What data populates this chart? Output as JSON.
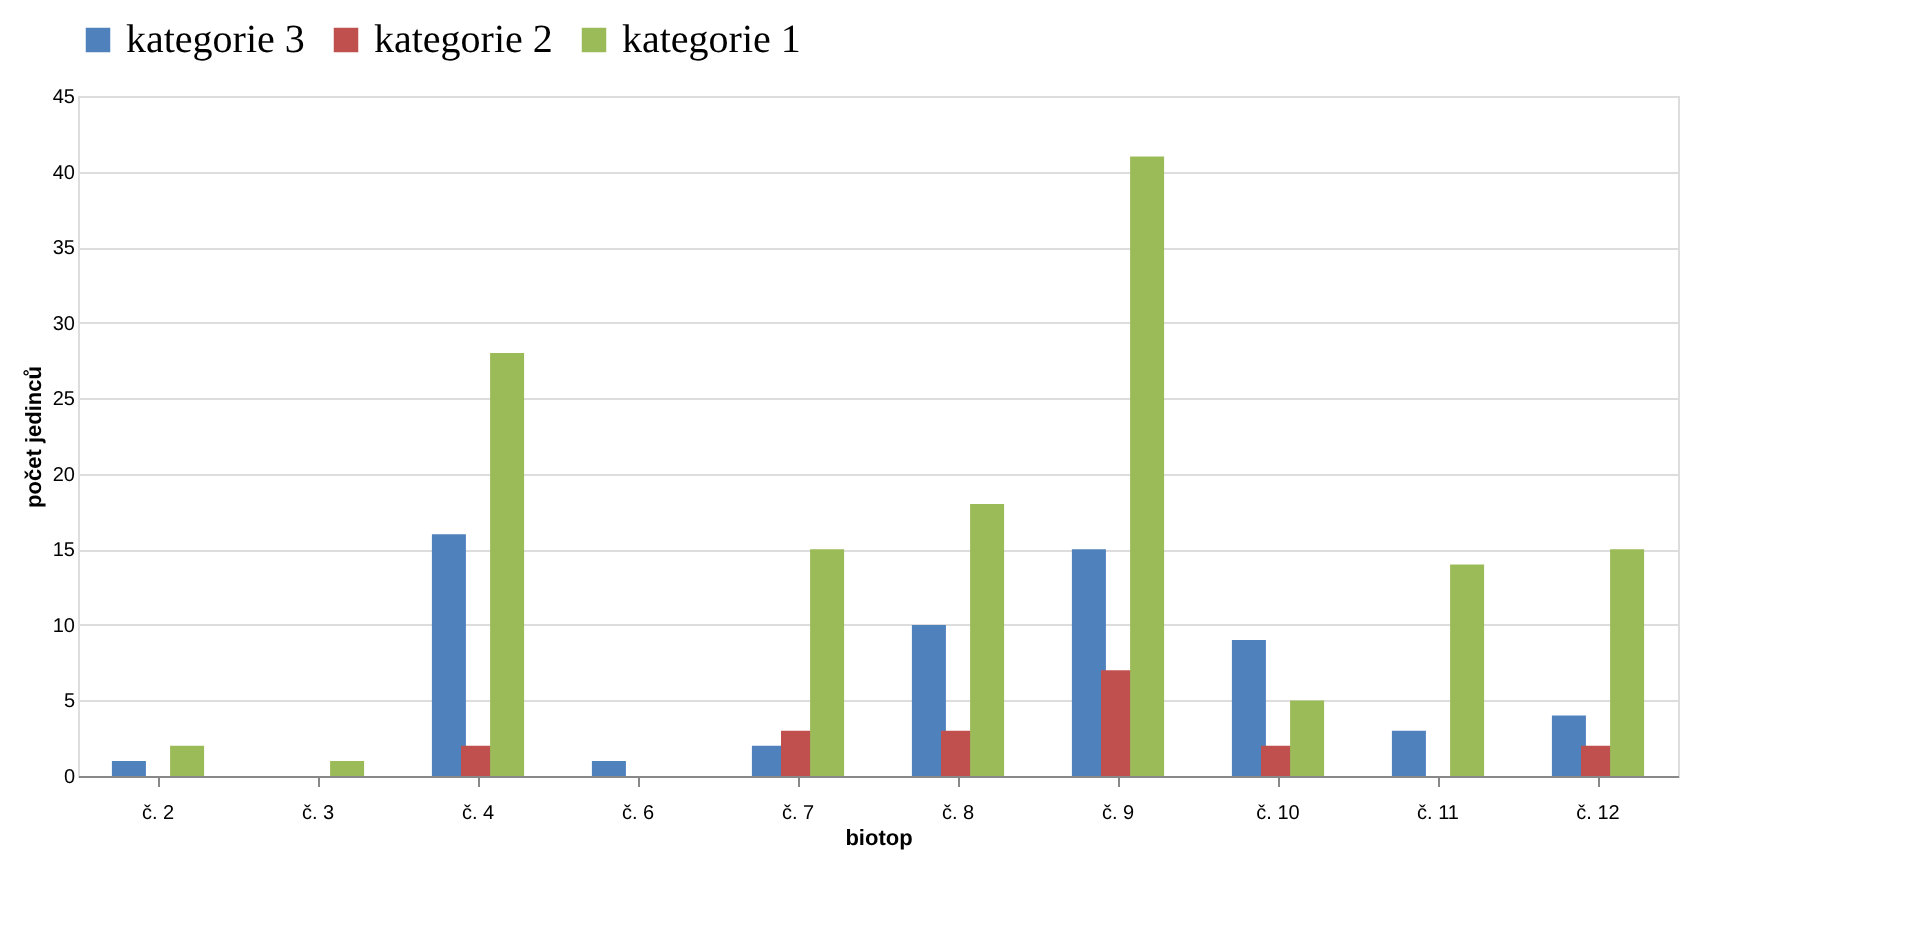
{
  "chart_data": {
    "type": "bar",
    "xlabel": "biotop",
    "ylabel": "počet jedinců",
    "categories": [
      "č. 2",
      "č. 3",
      "č. 4",
      "č. 6",
      "č. 7",
      "č. 8",
      "č. 9",
      "č. 10",
      "č. 11",
      "č. 12"
    ],
    "series": [
      {
        "name": "kategorie 3",
        "color": "#4f81bd",
        "values": [
          1,
          0,
          16,
          1,
          2,
          10,
          15,
          9,
          3,
          4
        ]
      },
      {
        "name": "kategorie 2",
        "color": "#c0504d",
        "values": [
          0,
          0,
          2,
          0,
          3,
          3,
          7,
          2,
          0,
          2
        ]
      },
      {
        "name": "kategorie 1",
        "color": "#9bbb59",
        "values": [
          2,
          1,
          28,
          0,
          15,
          18,
          41,
          5,
          14,
          15
        ]
      }
    ],
    "ylim": [
      0,
      45
    ],
    "yticks": [
      0,
      5,
      10,
      15,
      20,
      25,
      30,
      35,
      40,
      45
    ],
    "grid": "y",
    "legend": "top"
  }
}
